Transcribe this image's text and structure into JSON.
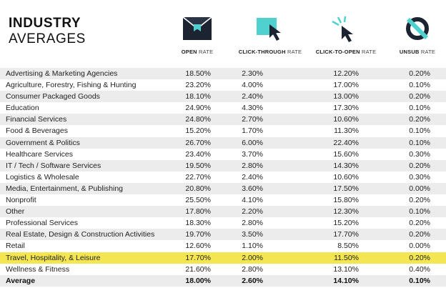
{
  "title": {
    "line1": "INDUSTRY",
    "line2": "AVERAGES"
  },
  "columns": [
    {
      "bold": "OPEN",
      "rest": " RATE",
      "icon": "envelope-icon"
    },
    {
      "bold": "CLICK-THROUGH",
      "rest": " RATE",
      "icon": "cursor-on-square-icon"
    },
    {
      "bold": "CLICK-TO-OPEN",
      "rest": " RATE",
      "icon": "click-cursor-icon"
    },
    {
      "bold": "UNSUB",
      "rest": " RATE",
      "icon": "unsubscribe-circle-slash-icon"
    }
  ],
  "colors": {
    "highlight": "#f3e652",
    "teal": "#4fd1d0",
    "navy": "#1c2331"
  },
  "rows": [
    {
      "industry": "Advertising & Marketing Agencies",
      "open": "18.50%",
      "ctr": "2.30%",
      "ctor": "12.20%",
      "unsub": "0.20%"
    },
    {
      "industry": "Agriculture, Forestry, Fishing & Hunting",
      "open": "23.20%",
      "ctr": "4.00%",
      "ctor": "17.00%",
      "unsub": "0.10%"
    },
    {
      "industry": "Consumer Packaged Goods",
      "open": "18.10%",
      "ctr": "2.40%",
      "ctor": "13.00%",
      "unsub": "0.20%"
    },
    {
      "industry": "Education",
      "open": "24.90%",
      "ctr": "4.30%",
      "ctor": "17.30%",
      "unsub": "0.10%"
    },
    {
      "industry": "Financial Services",
      "open": "24.80%",
      "ctr": "2.70%",
      "ctor": "10.60%",
      "unsub": "0.20%"
    },
    {
      "industry": "Food & Beverages",
      "open": "15.20%",
      "ctr": "1.70%",
      "ctor": "11.30%",
      "unsub": "0.10%"
    },
    {
      "industry": "Government & Politics",
      "open": "26.70%",
      "ctr": "6.00%",
      "ctor": "22.40%",
      "unsub": "0.10%"
    },
    {
      "industry": "Healthcare Services",
      "open": "23.40%",
      "ctr": "3.70%",
      "ctor": "15.60%",
      "unsub": "0.30%"
    },
    {
      "industry": "IT / Tech / Software Services",
      "open": "19.50%",
      "ctr": "2.80%",
      "ctor": "14.30%",
      "unsub": "0.20%"
    },
    {
      "industry": "Logistics & Wholesale",
      "open": "22.70%",
      "ctr": "2.40%",
      "ctor": "10.60%",
      "unsub": "0.30%"
    },
    {
      "industry": "Media, Entertainment, & Publishing",
      "open": "20.80%",
      "ctr": "3.60%",
      "ctor": "17.50%",
      "unsub": "0.00%"
    },
    {
      "industry": "Nonprofit",
      "open": "25.50%",
      "ctr": "4.10%",
      "ctor": "15.80%",
      "unsub": "0.20%"
    },
    {
      "industry": "Other",
      "open": "17.80%",
      "ctr": "2.20%",
      "ctor": "12.30%",
      "unsub": "0.10%"
    },
    {
      "industry": "Professional Services",
      "open": "18.30%",
      "ctr": "2.80%",
      "ctor": "15.20%",
      "unsub": "0.20%"
    },
    {
      "industry": "Real Estate, Design & Construction Activities",
      "open": "19.70%",
      "ctr": "3.50%",
      "ctor": "17.70%",
      "unsub": "0.20%"
    },
    {
      "industry": "Retail",
      "open": "12.60%",
      "ctr": "1.10%",
      "ctor": "8.50%",
      "unsub": "0.00%"
    },
    {
      "industry": "Travel, Hospitality, & Leisure",
      "open": "17.70%",
      "ctr": "2.00%",
      "ctor": "11.50%",
      "unsub": "0.20%"
    },
    {
      "industry": "Wellness & Fitness",
      "open": "21.60%",
      "ctr": "2.80%",
      "ctor": "13.10%",
      "unsub": "0.40%"
    }
  ],
  "average": {
    "industry": "Average",
    "open": "18.00%",
    "ctr": "2.60%",
    "ctor": "14.10%",
    "unsub": "0.10%"
  }
}
